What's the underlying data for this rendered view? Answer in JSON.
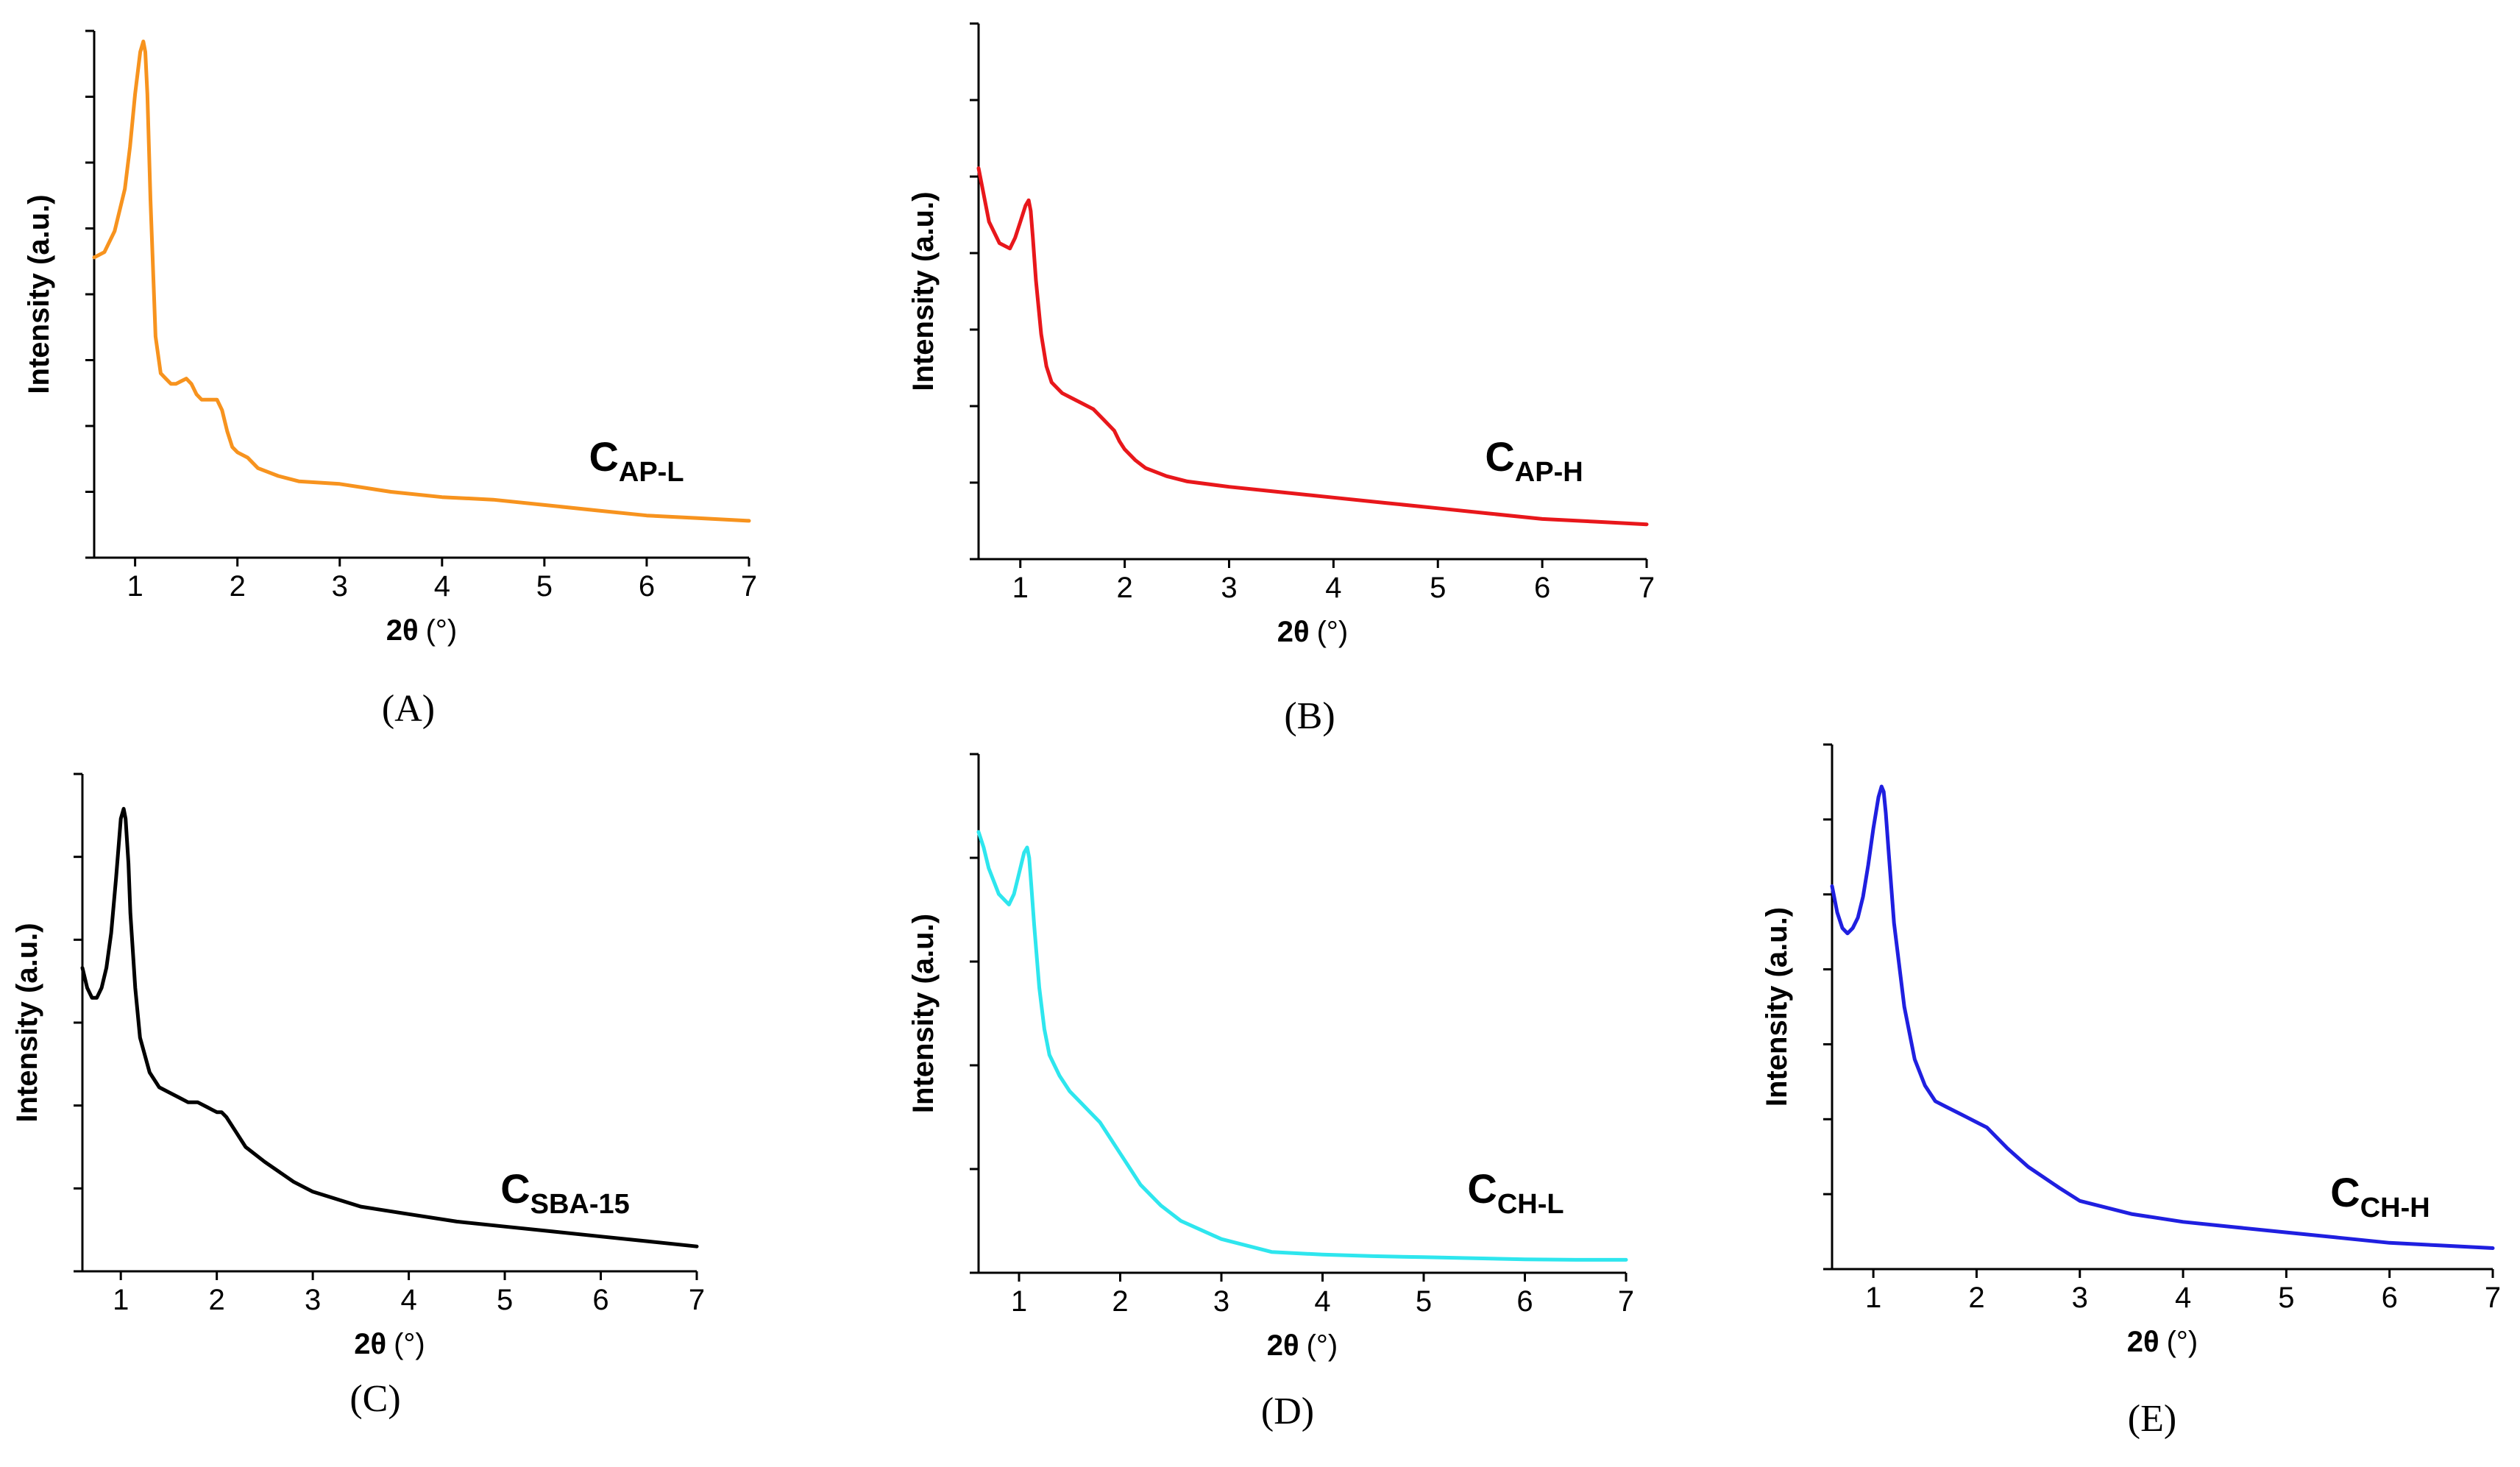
{
  "chart_data": [
    {
      "panel": "(A)",
      "type": "line",
      "title": "",
      "ylabel": "Intensity (a.u.)",
      "xlabel_main": "2θ",
      "xlabel_unit": "(°)",
      "label_main": "C",
      "label_sub": "AP-L",
      "color": "#F7931E",
      "xlim": [
        0.6,
        7
      ],
      "ylim": [
        0,
        100
      ],
      "xticks": [
        1,
        2,
        3,
        4,
        5,
        6,
        7
      ],
      "x": [
        0.6,
        0.7,
        0.8,
        0.9,
        0.95,
        1.0,
        1.05,
        1.08,
        1.1,
        1.12,
        1.15,
        1.2,
        1.25,
        1.3,
        1.35,
        1.4,
        1.45,
        1.5,
        1.55,
        1.6,
        1.65,
        1.7,
        1.75,
        1.8,
        1.85,
        1.9,
        1.95,
        2.0,
        2.1,
        2.2,
        2.4,
        2.6,
        3.0,
        3.5,
        4.0,
        4.5,
        5.0,
        5.5,
        6.0,
        6.5,
        7.0
      ],
      "y": [
        57,
        58,
        62,
        70,
        78,
        88,
        96,
        98,
        96,
        88,
        68,
        42,
        35,
        34,
        33,
        33,
        33.5,
        34,
        33,
        31,
        30,
        30,
        30,
        30,
        28,
        24,
        21,
        20,
        19,
        17,
        15.5,
        14.5,
        14,
        12.5,
        11.5,
        11,
        10,
        9,
        8,
        7.5,
        7
      ]
    },
    {
      "panel": "(B)",
      "type": "line",
      "title": "",
      "ylabel": "Intensity (a.u.)",
      "xlabel_main": "2θ",
      "xlabel_unit": "(°)",
      "label_main": "C",
      "label_sub": "AP-H",
      "color": "#E8171B",
      "xlim": [
        0.6,
        7
      ],
      "ylim": [
        0,
        100
      ],
      "xticks": [
        1,
        2,
        3,
        4,
        5,
        6,
        7
      ],
      "x": [
        0.6,
        0.65,
        0.7,
        0.8,
        0.9,
        0.95,
        1.0,
        1.05,
        1.08,
        1.1,
        1.12,
        1.15,
        1.2,
        1.25,
        1.3,
        1.4,
        1.5,
        1.6,
        1.7,
        1.8,
        1.9,
        1.95,
        2.0,
        2.1,
        2.2,
        2.4,
        2.6,
        3.0,
        3.5,
        4.0,
        4.5,
        5.0,
        5.5,
        6.0,
        6.5,
        7.0
      ],
      "y": [
        73,
        68,
        63,
        59,
        58,
        60,
        63,
        66,
        67,
        65,
        60,
        52,
        42,
        36,
        33,
        31,
        30,
        29,
        28,
        26,
        24,
        22,
        20.5,
        18.5,
        17,
        15.5,
        14.5,
        13.5,
        12.5,
        11.5,
        10.5,
        9.5,
        8.5,
        7.5,
        7,
        6.5
      ]
    },
    {
      "panel": "(C)",
      "type": "line",
      "title": "",
      "ylabel": "Intensity (a.u.)",
      "xlabel_main": "2θ",
      "xlabel_unit": "(°)",
      "label_main": "C",
      "label_sub": "SBA-15",
      "color": "#000000",
      "xlim": [
        0.6,
        7
      ],
      "ylim": [
        0,
        100
      ],
      "xticks": [
        1,
        2,
        3,
        4,
        5,
        6,
        7
      ],
      "x": [
        0.6,
        0.65,
        0.7,
        0.75,
        0.8,
        0.85,
        0.9,
        0.95,
        1.0,
        1.03,
        1.05,
        1.08,
        1.1,
        1.15,
        1.2,
        1.3,
        1.4,
        1.5,
        1.6,
        1.7,
        1.8,
        1.9,
        1.95,
        2.0,
        2.05,
        2.1,
        2.2,
        2.3,
        2.5,
        2.8,
        3.0,
        3.5,
        4.0,
        4.5,
        5.0,
        5.5,
        6.0,
        6.5,
        7.0
      ],
      "y": [
        61,
        57,
        55,
        55,
        57,
        61,
        68,
        79,
        91,
        93,
        91,
        82,
        72,
        57,
        47,
        40,
        37,
        36,
        35,
        34,
        34,
        33,
        32.5,
        32,
        32,
        31,
        28,
        25,
        22,
        18,
        16,
        13,
        11.5,
        10,
        9,
        8,
        7,
        6,
        5
      ]
    },
    {
      "panel": "(D)",
      "type": "line",
      "title": "",
      "ylabel": "Intensity (a.u.)",
      "xlabel_main": "2θ",
      "xlabel_unit": "(°)",
      "label_main": "C",
      "label_sub": "CH-L",
      "color": "#2EE6EE",
      "xlim": [
        0.6,
        7
      ],
      "ylim": [
        0,
        100
      ],
      "xticks": [
        1,
        2,
        3,
        4,
        5,
        6,
        7
      ],
      "x": [
        0.6,
        0.65,
        0.7,
        0.8,
        0.9,
        0.95,
        1.0,
        1.05,
        1.08,
        1.1,
        1.12,
        1.15,
        1.2,
        1.25,
        1.3,
        1.4,
        1.5,
        1.6,
        1.7,
        1.8,
        1.9,
        2.0,
        2.1,
        2.2,
        2.4,
        2.6,
        3.0,
        3.5,
        4.0,
        4.5,
        5.0,
        5.5,
        6.0,
        6.5,
        7.0
      ],
      "y": [
        85,
        82,
        78,
        73,
        71,
        73,
        77,
        81,
        82,
        80,
        75,
        67,
        55,
        47,
        42,
        38,
        35,
        33,
        31,
        29,
        26,
        23,
        20,
        17,
        13,
        10,
        6.5,
        4,
        3.5,
        3.2,
        3,
        2.8,
        2.6,
        2.5,
        2.5
      ]
    },
    {
      "panel": "(E)",
      "type": "line",
      "title": "",
      "ylabel": "Intensity (a.u.)",
      "xlabel_main": "2θ",
      "xlabel_unit": "(°)",
      "label_main": "C",
      "label_sub": "CH-H",
      "color": "#1F1FE0",
      "xlim": [
        0.6,
        7
      ],
      "ylim": [
        0,
        100
      ],
      "xticks": [
        1,
        2,
        3,
        4,
        5,
        6,
        7
      ],
      "x": [
        0.6,
        0.65,
        0.7,
        0.75,
        0.8,
        0.85,
        0.9,
        0.95,
        1.0,
        1.05,
        1.08,
        1.1,
        1.12,
        1.15,
        1.2,
        1.3,
        1.4,
        1.5,
        1.6,
        1.7,
        1.8,
        1.9,
        2.0,
        2.1,
        2.2,
        2.3,
        2.5,
        2.8,
        3.0,
        3.5,
        4.0,
        4.5,
        5.0,
        5.5,
        6.0,
        6.5,
        7.0
      ],
      "y": [
        73,
        68,
        65,
        64,
        65,
        67,
        71,
        77,
        84,
        90,
        92,
        91,
        87,
        79,
        66,
        50,
        40,
        35,
        32,
        31,
        30,
        29,
        28,
        27,
        25,
        23,
        19.5,
        15.5,
        13,
        10.5,
        9,
        8,
        7,
        6,
        5,
        4.5,
        4
      ]
    }
  ]
}
